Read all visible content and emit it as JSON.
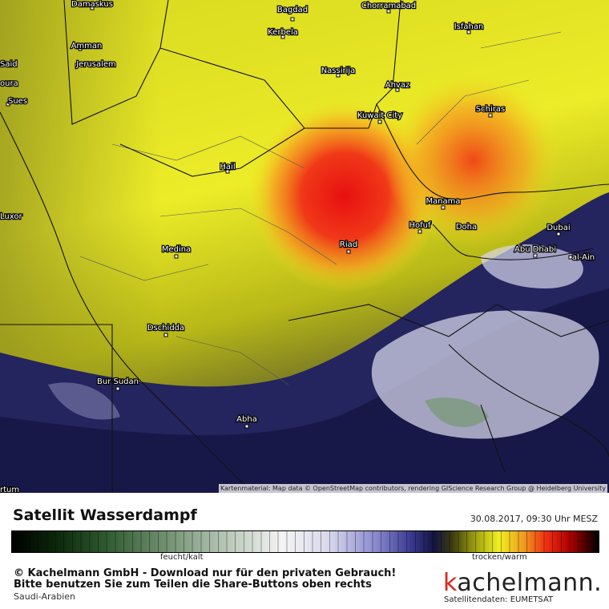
{
  "map": {
    "cities": [
      "Damaskus",
      "Bagdad",
      "Chorramabad",
      "Kerbela",
      "Isfahan",
      "Amman",
      "Jerusalem",
      "Said",
      "oura",
      "Nassirija",
      "Ahvaz",
      "Sues",
      "Schiras",
      "Kuwait City",
      "Hail",
      "Manama",
      "Luxor",
      "Hofuf",
      "Doha",
      "Dubai",
      "Riad",
      "Medina",
      "Abu Dhabi",
      "al-Ain",
      "Dschidda",
      "Bur Sudan",
      "Abha",
      "rtum"
    ],
    "attribution": "Kartenmaterial: Map data © OpenStreetMap contributors, rendering GIScience Research Group @ Heidelberg University"
  },
  "footer": {
    "title": "Satellit Wasserdampf",
    "timestamp": "30.08.2017, 09:30 Uhr MESZ",
    "scale_labels": [
      "feucht/kalt",
      "trocken/warm"
    ],
    "copyright": "© Kachelmann GmbH - Download nur für den privaten Gebrauch!",
    "share_note": "Bitte benutzen Sie zum Teilen die Share-Buttons oben rechts",
    "region": "Saudi-Arabien",
    "logo": "kachelmann.",
    "source": "Satellitendaten: EUMETSAT"
  }
}
